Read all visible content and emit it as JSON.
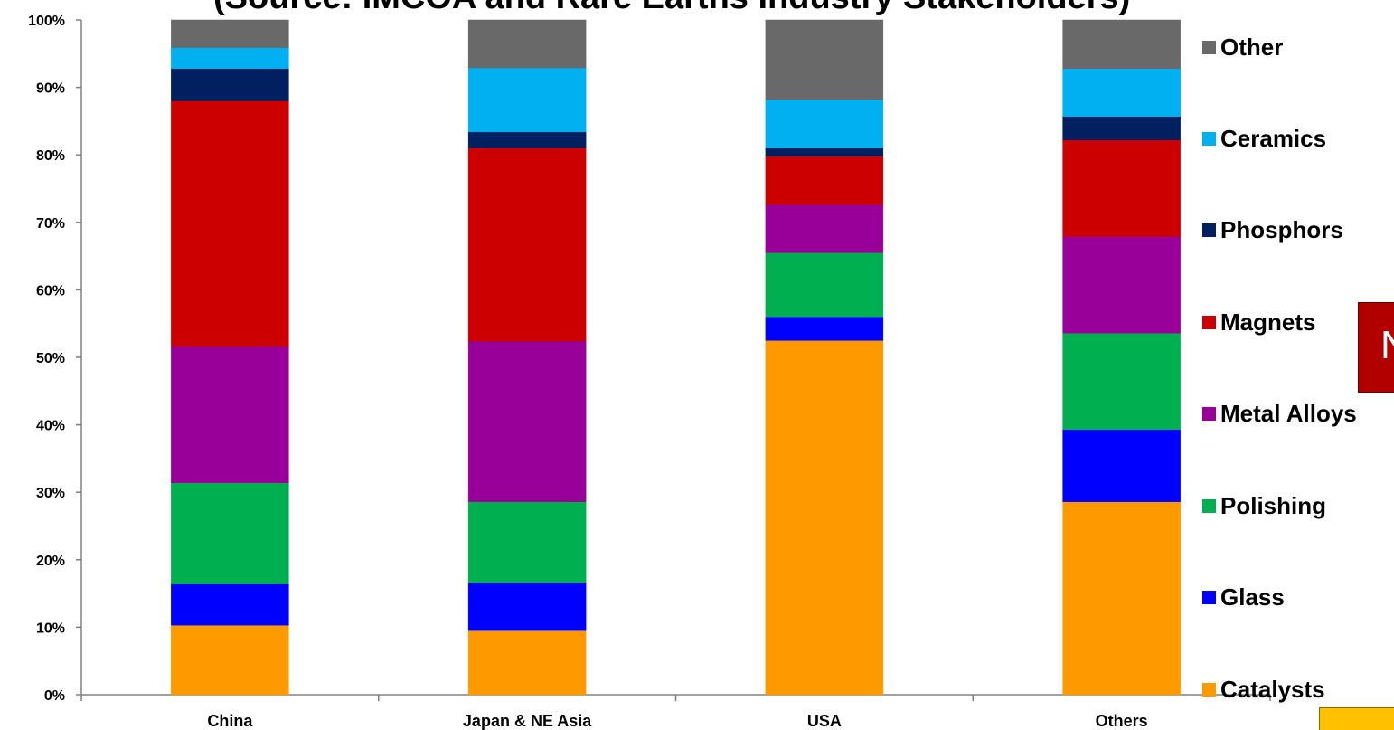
{
  "title": "(Source: IMCOA and Rare Earths Industry Stakeholders)",
  "callout_text": "N",
  "chart_data": {
    "type": "bar",
    "stacked": true,
    "categories": [
      "China",
      "Japan & NE Asia",
      "USA",
      "Others"
    ],
    "y_ticks": [
      "0%",
      "10%",
      "20%",
      "30%",
      "40%",
      "50%",
      "60%",
      "70%",
      "80%",
      "90%",
      "100%"
    ],
    "ylim": [
      0,
      100
    ],
    "grid": false,
    "legend_position": "right",
    "series": [
      {
        "name": "Catalysts",
        "color": "#ff9900",
        "values": [
          10.3,
          9.5,
          52.5,
          28.6
        ]
      },
      {
        "name": "Glass",
        "color": "#0000ff",
        "values": [
          6.1,
          7.1,
          3.5,
          10.7
        ]
      },
      {
        "name": "Polishing",
        "color": "#00b050",
        "values": [
          15.0,
          12.0,
          9.5,
          14.3
        ]
      },
      {
        "name": "Metal Alloys",
        "color": "#990099",
        "values": [
          20.2,
          23.8,
          7.1,
          14.3
        ]
      },
      {
        "name": "Magnets",
        "color": "#cc0000",
        "values": [
          36.4,
          28.6,
          7.2,
          14.3
        ]
      },
      {
        "name": "Phosphors",
        "color": "#002060",
        "values": [
          4.8,
          2.4,
          1.2,
          3.5
        ]
      },
      {
        "name": "Ceramics",
        "color": "#00b0f0",
        "values": [
          3.1,
          9.5,
          7.2,
          7.1
        ]
      },
      {
        "name": "Other",
        "color": "#696969",
        "values": [
          4.1,
          7.1,
          11.8,
          7.2
        ]
      }
    ]
  }
}
